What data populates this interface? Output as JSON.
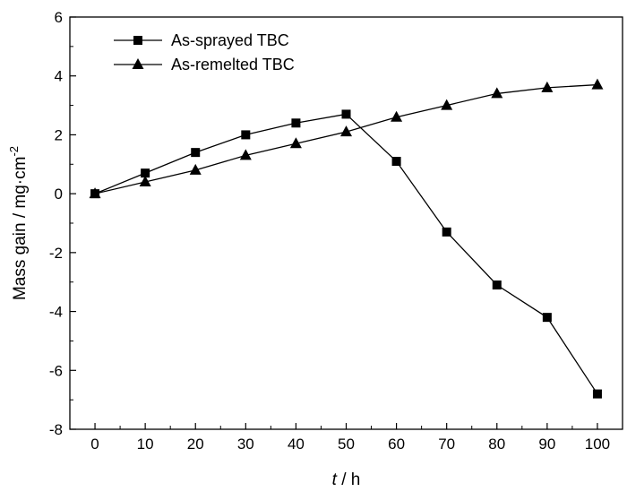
{
  "chart_data": {
    "type": "line",
    "title": "",
    "xlabel_italic": "t",
    "xlabel_rest": " / h",
    "ylabel": "Mass gain / mg·cm",
    "ylabel_sup": "-2",
    "xlim": [
      -5,
      105
    ],
    "ylim": [
      -8,
      6
    ],
    "xticks": [
      0,
      10,
      20,
      30,
      40,
      50,
      60,
      70,
      80,
      90,
      100
    ],
    "yticks": [
      -8,
      -6,
      -4,
      -2,
      0,
      2,
      4,
      6
    ],
    "legend_position": "top-left",
    "series": [
      {
        "name": "As-sprayed TBC",
        "marker": "square",
        "x": [
          0,
          10,
          20,
          30,
          40,
          50,
          60,
          70,
          80,
          90,
          100
        ],
        "y": [
          0,
          0.7,
          1.4,
          2.0,
          2.4,
          2.7,
          1.1,
          -1.3,
          -3.1,
          -4.2,
          -6.8
        ]
      },
      {
        "name": "As-remelted TBC",
        "marker": "triangle",
        "x": [
          0,
          10,
          20,
          30,
          40,
          50,
          60,
          70,
          80,
          90,
          100
        ],
        "y": [
          0,
          0.4,
          0.8,
          1.3,
          1.7,
          2.1,
          2.6,
          3.0,
          3.4,
          3.6,
          3.7
        ]
      }
    ]
  }
}
